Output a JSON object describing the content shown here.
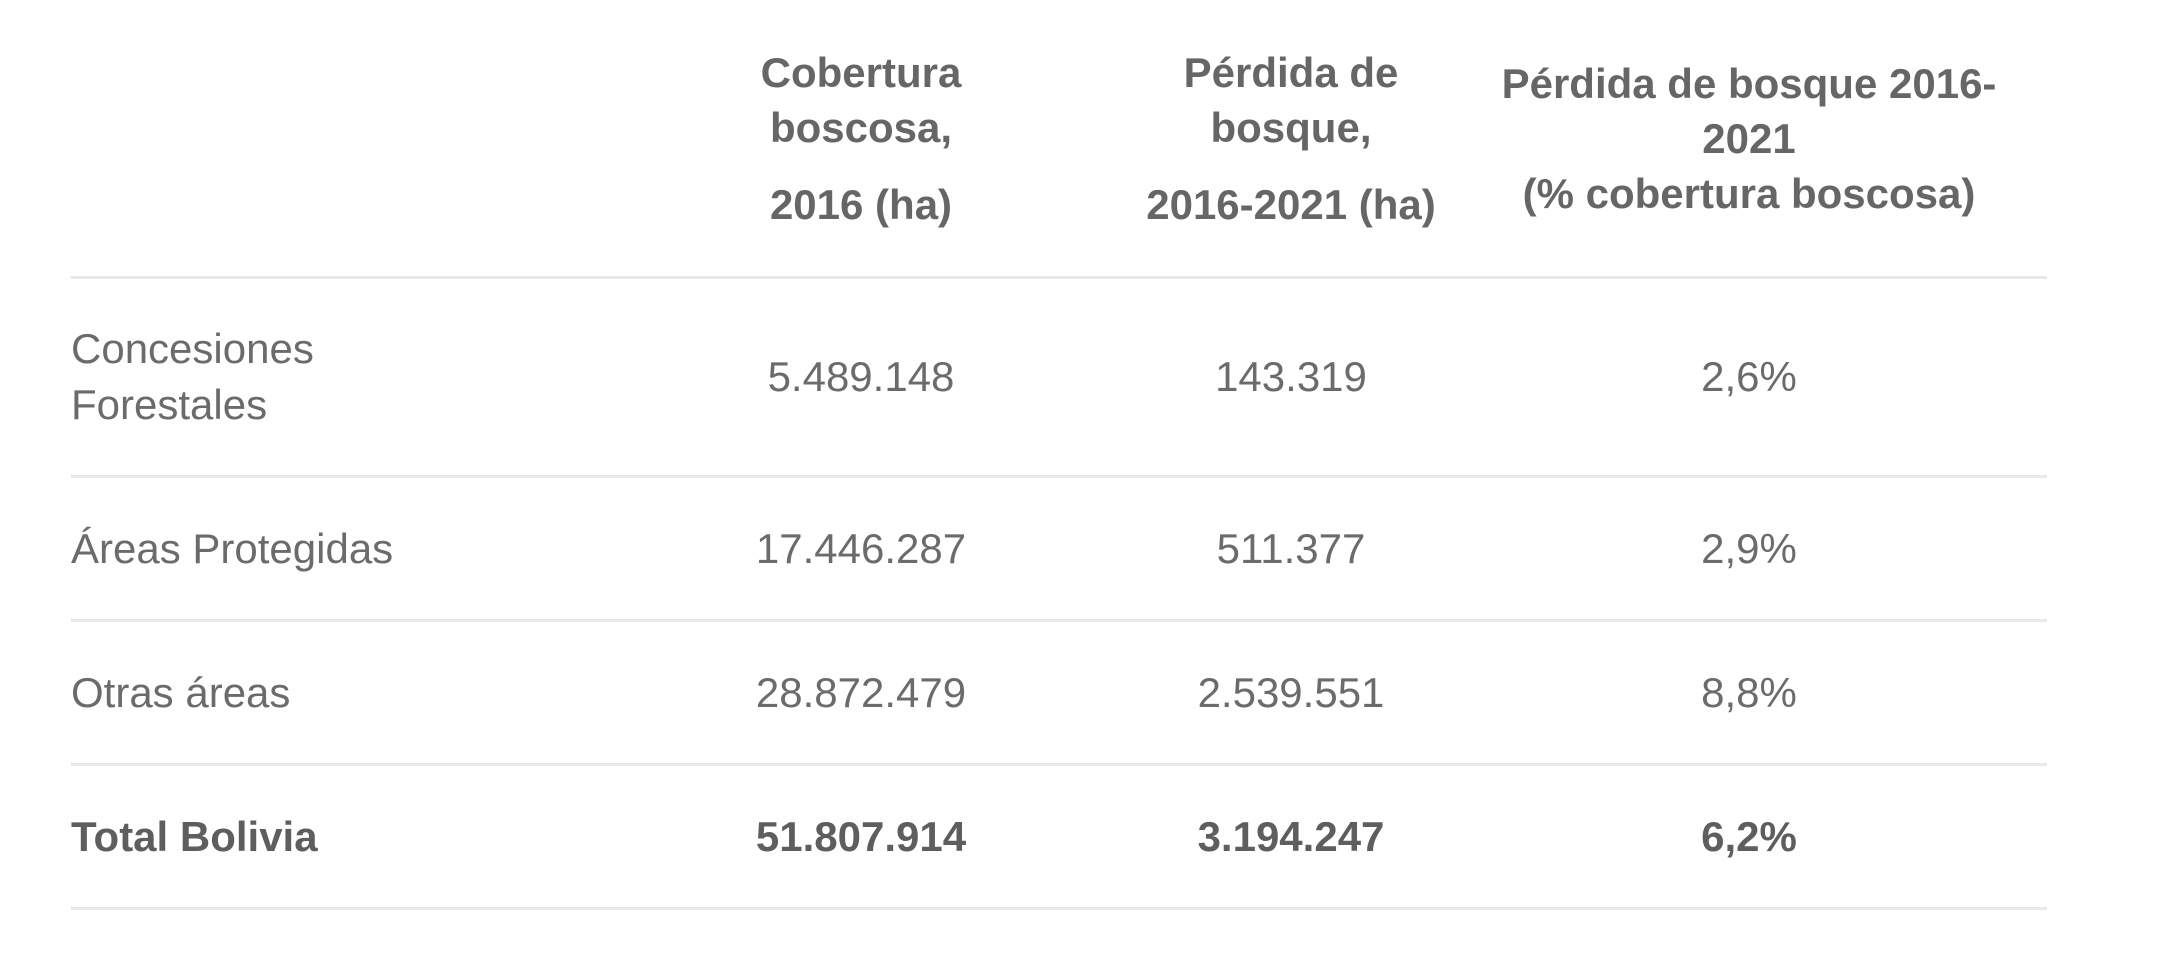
{
  "table": {
    "headers": [
      "",
      [
        "Cobertura",
        "boscosa,",
        "2016 (ha)"
      ],
      [
        "Pérdida de",
        "bosque,",
        "2016-2021 (ha)"
      ],
      [
        "Pérdida de bosque 2016-",
        "2021",
        "(% cobertura boscosa)"
      ]
    ],
    "rows": [
      [
        "Concesiones Forestales",
        "5.489.148",
        "143.319",
        "2,6%"
      ],
      [
        "Áreas Protegidas",
        "17.446.287",
        "511.377",
        "2,9%"
      ],
      [
        "Otras áreas",
        "28.872.479",
        "2.539.551",
        "8,8%"
      ]
    ],
    "total": [
      "Total Bolivia",
      "51.807.914",
      "3.194.247",
      "6,2%"
    ]
  }
}
